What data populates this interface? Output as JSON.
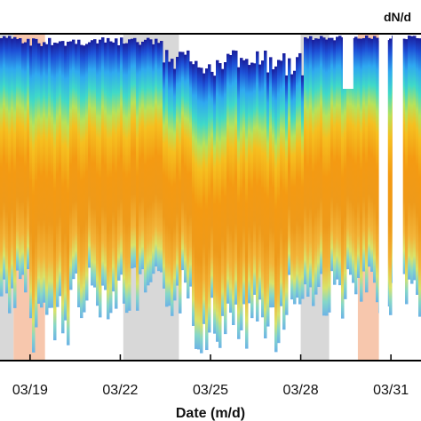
{
  "chart_data": {
    "type": "heatmap",
    "title": "dN/d",
    "xlabel": "Date (m/d)",
    "ylabel": "",
    "x_ticks": [
      "03/19",
      "03/22",
      "03/25",
      "03/28",
      "03/31"
    ],
    "x_tick_days": [
      19,
      22,
      25,
      28,
      31
    ],
    "xlim_days": [
      18,
      32
    ],
    "colormap": "jet",
    "shaded_periods": [
      {
        "start_day": 18.0,
        "end_day": 18.45,
        "color": "#d8d8d8"
      },
      {
        "start_day": 18.45,
        "end_day": 19.5,
        "color": "#f7c7ad"
      },
      {
        "start_day": 19.5,
        "end_day": 22.1,
        "color": "#ffffff"
      },
      {
        "start_day": 22.1,
        "end_day": 23.95,
        "color": "#d8d8d8"
      },
      {
        "start_day": 23.95,
        "end_day": 28.0,
        "color": "#ffffff"
      },
      {
        "start_day": 28.0,
        "end_day": 28.95,
        "color": "#d8d8d8"
      },
      {
        "start_day": 28.95,
        "end_day": 29.9,
        "color": "#ffffff"
      },
      {
        "start_day": 29.9,
        "end_day": 30.85,
        "color": "#f7c7ad"
      },
      {
        "start_day": 30.85,
        "end_day": 32.0,
        "color": "#ffffff"
      }
    ],
    "data_gaps": [
      {
        "start_day": 29.4,
        "end_day": 29.75
      },
      {
        "start_day": 30.6,
        "end_day": 30.9
      },
      {
        "start_day": 31.05,
        "end_day": 31.4
      }
    ]
  }
}
